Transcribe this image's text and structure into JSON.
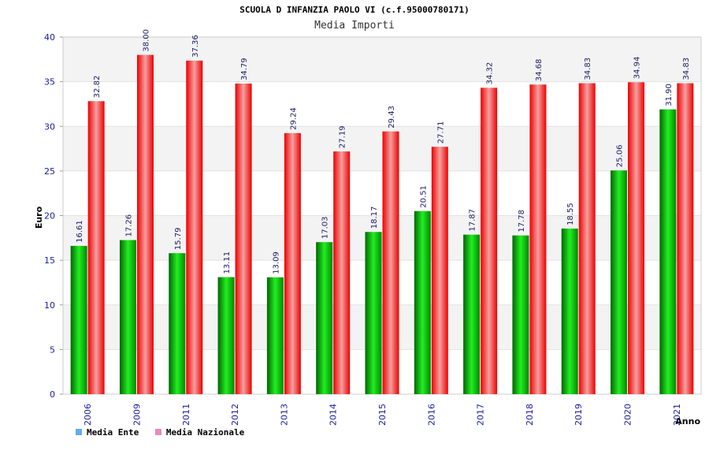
{
  "chart_data": {
    "type": "bar",
    "title": "SCUOLA D INFANZIA PAOLO VI (c.f.95000780171)",
    "subtitle": "Media Importi",
    "xlabel": "Anno",
    "ylabel": "Euro",
    "ylim": [
      0,
      40
    ],
    "yticks": [
      0,
      5,
      10,
      15,
      20,
      25,
      30,
      35,
      40
    ],
    "grid": true,
    "categories": [
      "2006",
      "2009",
      "2011",
      "2012",
      "2013",
      "2014",
      "2015",
      "2016",
      "2017",
      "2018",
      "2019",
      "2020",
      "2021"
    ],
    "series": [
      {
        "name": "Media Ente",
        "color": "#00cc00",
        "legend_color": "#66aaee",
        "values": [
          16.61,
          17.26,
          15.79,
          13.11,
          13.09,
          17.03,
          18.17,
          20.51,
          17.87,
          17.78,
          18.55,
          25.06,
          31.9
        ],
        "labels": [
          "16.61",
          "17.26",
          "15.79",
          "13.11",
          "13.09",
          "17.03",
          "18.17",
          "20.51",
          "17.87",
          "17.78",
          "18.55",
          "25.06",
          "31.90"
        ]
      },
      {
        "name": "Media Nazionale",
        "color": "#ff0000",
        "legend_color": "#ee88bb",
        "values": [
          32.82,
          38.0,
          37.36,
          34.79,
          29.24,
          27.19,
          29.43,
          27.71,
          34.32,
          34.68,
          34.83,
          34.94,
          34.83
        ],
        "labels": [
          "32.82",
          "38.00",
          "37.36",
          "34.79",
          "29.24",
          "27.19",
          "29.43",
          "27.71",
          "34.32",
          "34.68",
          "34.83",
          "34.94",
          "34.83"
        ]
      }
    ],
    "legend_position": "bottom-left"
  }
}
